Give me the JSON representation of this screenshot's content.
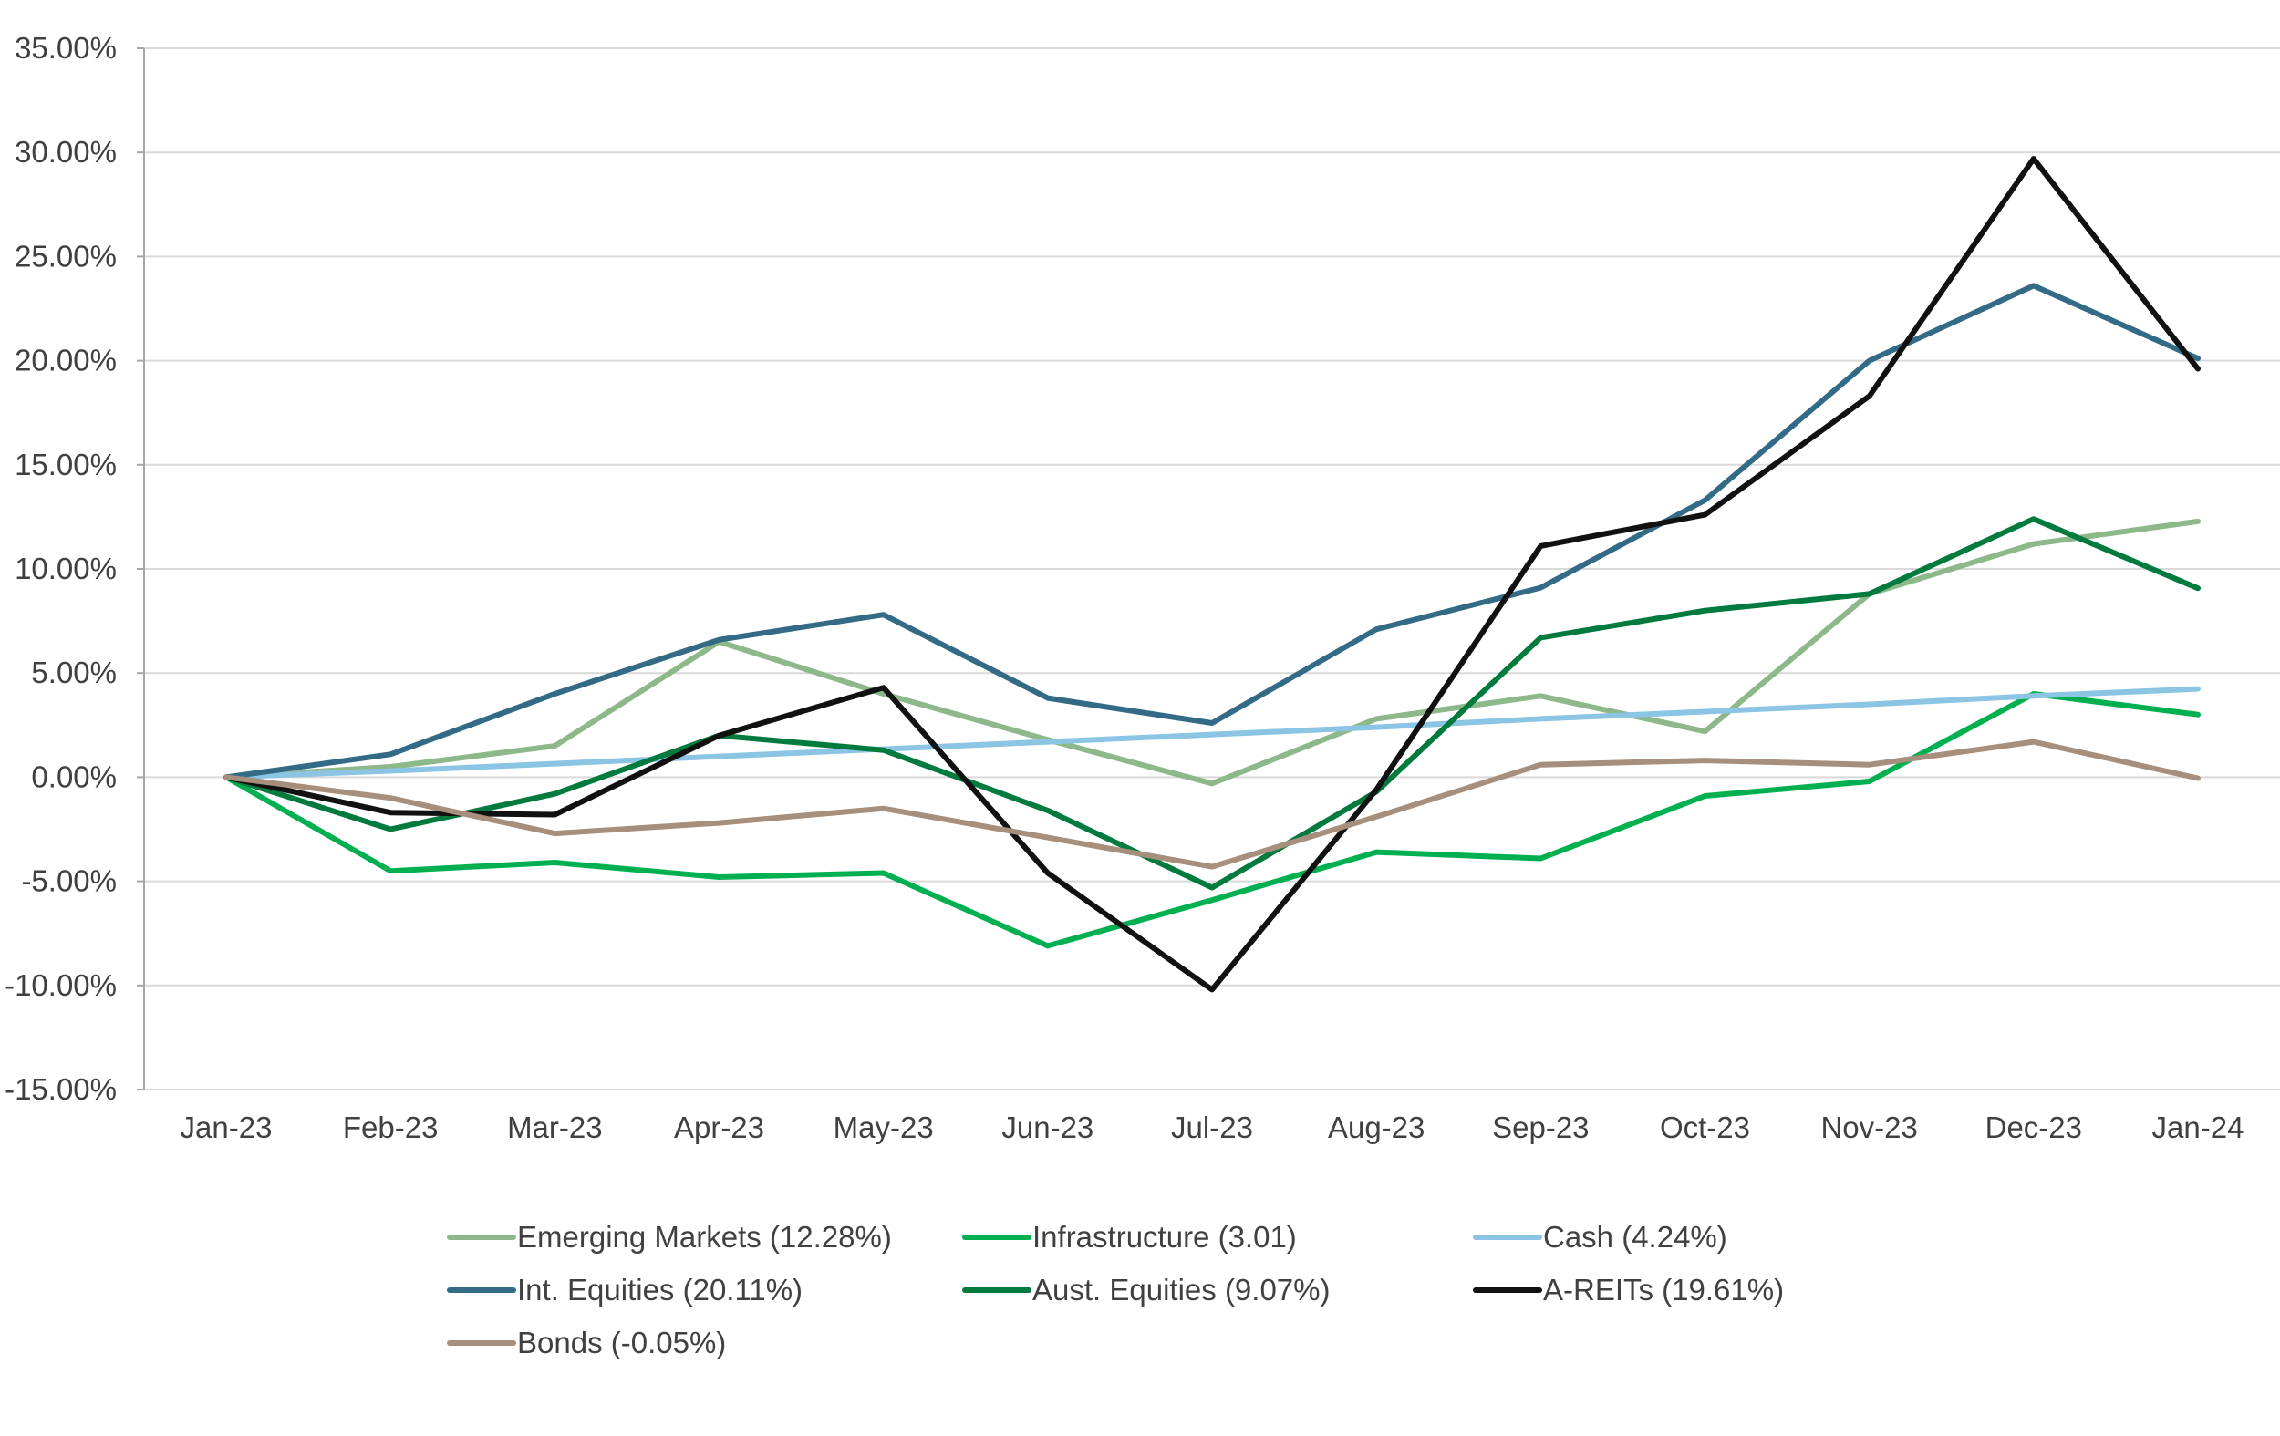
{
  "chart_data": {
    "type": "line",
    "title": "",
    "xlabel": "",
    "ylabel": "",
    "ylim": [
      -15,
      35
    ],
    "y_ticks": [
      35,
      30,
      25,
      20,
      15,
      10,
      5,
      0,
      -5,
      -10,
      -15
    ],
    "y_tick_labels": [
      "35.00%",
      "30.00%",
      "25.00%",
      "20.00%",
      "15.00%",
      "10.00%",
      "5.00%",
      "0.00%",
      "-5.00%",
      "-10.00%",
      "-15.00%"
    ],
    "grid": "horizontal",
    "legend_position": "bottom",
    "categories": [
      "Jan-23",
      "Feb-23",
      "Mar-23",
      "Apr-23",
      "May-23",
      "Jun-23",
      "Jul-23",
      "Aug-23",
      "Sep-23",
      "Oct-23",
      "Nov-23",
      "Dec-23",
      "Jan-24"
    ],
    "series": [
      {
        "name": "Emerging Markets (12.28%)",
        "color": "#8db88a",
        "values": [
          0,
          0.5,
          1.5,
          6.5,
          4.0,
          1.8,
          -0.3,
          2.8,
          3.9,
          2.2,
          8.8,
          11.2,
          12.28
        ]
      },
      {
        "name": "Infrastructure (3.01)",
        "color": "#00b050",
        "values": [
          0,
          -4.5,
          -4.1,
          -4.8,
          -4.6,
          -8.1,
          -5.9,
          -3.6,
          -3.9,
          -0.9,
          -0.2,
          4.0,
          3.01
        ]
      },
      {
        "name": "Cash (4.24%)",
        "color": "#8cc4e4",
        "values": [
          0,
          0.3,
          0.65,
          1.0,
          1.35,
          1.7,
          2.05,
          2.4,
          2.8,
          3.15,
          3.5,
          3.9,
          4.24
        ]
      },
      {
        "name": "Int. Equities (20.11%)",
        "color": "#336b87",
        "values": [
          0,
          1.1,
          4.0,
          6.6,
          7.8,
          3.8,
          2.6,
          7.1,
          9.1,
          13.3,
          20.0,
          23.6,
          20.11
        ]
      },
      {
        "name": "Aust. Equities (9.07%)",
        "color": "#007a3d",
        "values": [
          0,
          -2.5,
          -0.8,
          2.0,
          1.3,
          -1.6,
          -5.3,
          -0.7,
          6.7,
          8.0,
          8.8,
          12.4,
          9.07
        ]
      },
      {
        "name": "A-REITs (19.61%)",
        "color": "#111111",
        "values": [
          0,
          -1.7,
          -1.8,
          2.0,
          4.3,
          -4.6,
          -10.2,
          -0.6,
          11.1,
          12.6,
          18.3,
          29.7,
          19.61
        ]
      },
      {
        "name": "Bonds (-0.05%)",
        "color": "#a68f7c",
        "values": [
          0,
          -1.0,
          -2.7,
          -2.2,
          -1.5,
          -2.9,
          -4.3,
          -1.9,
          0.6,
          0.8,
          0.6,
          1.7,
          -0.05
        ]
      }
    ]
  }
}
